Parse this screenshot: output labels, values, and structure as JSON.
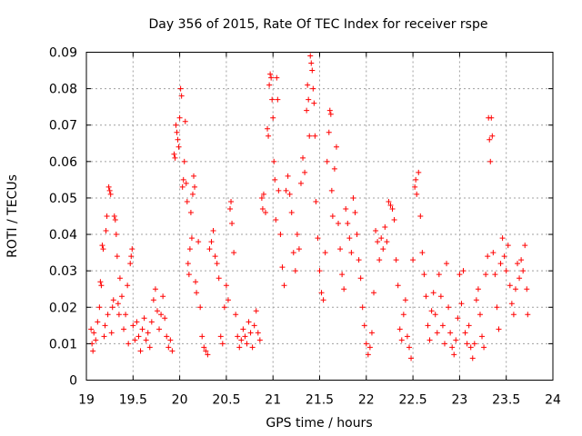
{
  "chart_data": {
    "type": "scatter",
    "title": "Day 356 of 2015, Rate Of TEC Index for receiver rspe",
    "xlabel": "GPS time / hours",
    "ylabel": "ROTI / TECUs",
    "xlim": [
      19,
      24
    ],
    "ylim": [
      0,
      0.09
    ],
    "x_ticks": [
      "19",
      "19.5",
      "20",
      "20.5",
      "21",
      "21.5",
      "22",
      "22.5",
      "23",
      "23.5",
      "24"
    ],
    "y_ticks": [
      "0",
      "0.01",
      "0.02",
      "0.03",
      "0.04",
      "0.05",
      "0.06",
      "0.07",
      "0.08",
      "0.09"
    ],
    "grid": true,
    "marker": "+",
    "color": "#ff0000",
    "series": [
      {
        "name": "ROTI",
        "points": [
          [
            19.05,
            0.014
          ],
          [
            19.06,
            0.01
          ],
          [
            19.07,
            0.008
          ],
          [
            19.08,
            0.013
          ],
          [
            19.1,
            0.011
          ],
          [
            19.12,
            0.016
          ],
          [
            19.14,
            0.02
          ],
          [
            19.15,
            0.027
          ],
          [
            19.16,
            0.026
          ],
          [
            19.17,
            0.037
          ],
          [
            19.18,
            0.036
          ],
          [
            19.19,
            0.012
          ],
          [
            19.2,
            0.015
          ],
          [
            19.21,
            0.041
          ],
          [
            19.22,
            0.045
          ],
          [
            19.23,
            0.018
          ],
          [
            19.24,
            0.053
          ],
          [
            19.25,
            0.052
          ],
          [
            19.26,
            0.051
          ],
          [
            19.27,
            0.013
          ],
          [
            19.28,
            0.02
          ],
          [
            19.29,
            0.022
          ],
          [
            19.3,
            0.045
          ],
          [
            19.31,
            0.044
          ],
          [
            19.32,
            0.04
          ],
          [
            19.33,
            0.034
          ],
          [
            19.34,
            0.021
          ],
          [
            19.35,
            0.018
          ],
          [
            19.36,
            0.028
          ],
          [
            19.38,
            0.023
          ],
          [
            19.4,
            0.014
          ],
          [
            19.42,
            0.018
          ],
          [
            19.44,
            0.026
          ],
          [
            19.45,
            0.01
          ],
          [
            19.47,
            0.032
          ],
          [
            19.48,
            0.034
          ],
          [
            19.49,
            0.036
          ],
          [
            19.5,
            0.015
          ],
          [
            19.52,
            0.011
          ],
          [
            19.54,
            0.016
          ],
          [
            19.56,
            0.012
          ],
          [
            19.58,
            0.008
          ],
          [
            19.6,
            0.014
          ],
          [
            19.62,
            0.017
          ],
          [
            19.64,
            0.011
          ],
          [
            19.66,
            0.013
          ],
          [
            19.68,
            0.009
          ],
          [
            19.7,
            0.016
          ],
          [
            19.72,
            0.022
          ],
          [
            19.74,
            0.025
          ],
          [
            19.76,
            0.019
          ],
          [
            19.78,
            0.014
          ],
          [
            19.8,
            0.018
          ],
          [
            19.82,
            0.023
          ],
          [
            19.84,
            0.017
          ],
          [
            19.86,
            0.012
          ],
          [
            19.88,
            0.009
          ],
          [
            19.9,
            0.011
          ],
          [
            19.92,
            0.008
          ],
          [
            19.94,
            0.062
          ],
          [
            19.95,
            0.061
          ],
          [
            19.96,
            0.07
          ],
          [
            19.97,
            0.068
          ],
          [
            19.98,
            0.066
          ],
          [
            19.99,
            0.064
          ],
          [
            20.0,
            0.072
          ],
          [
            20.01,
            0.08
          ],
          [
            20.02,
            0.078
          ],
          [
            20.03,
            0.053
          ],
          [
            20.04,
            0.055
          ],
          [
            20.05,
            0.06
          ],
          [
            20.06,
            0.071
          ],
          [
            20.07,
            0.054
          ],
          [
            20.08,
            0.049
          ],
          [
            20.09,
            0.032
          ],
          [
            20.1,
            0.029
          ],
          [
            20.11,
            0.036
          ],
          [
            20.12,
            0.046
          ],
          [
            20.13,
            0.039
          ],
          [
            20.14,
            0.051
          ],
          [
            20.15,
            0.056
          ],
          [
            20.16,
            0.053
          ],
          [
            20.17,
            0.027
          ],
          [
            20.18,
            0.024
          ],
          [
            20.2,
            0.038
          ],
          [
            20.22,
            0.02
          ],
          [
            20.24,
            0.012
          ],
          [
            20.26,
            0.009
          ],
          [
            20.28,
            0.008
          ],
          [
            20.3,
            0.007
          ],
          [
            20.32,
            0.036
          ],
          [
            20.34,
            0.038
          ],
          [
            20.36,
            0.041
          ],
          [
            20.38,
            0.034
          ],
          [
            20.4,
            0.032
          ],
          [
            20.42,
            0.028
          ],
          [
            20.44,
            0.012
          ],
          [
            20.46,
            0.01
          ],
          [
            20.48,
            0.02
          ],
          [
            20.5,
            0.026
          ],
          [
            20.52,
            0.022
          ],
          [
            20.54,
            0.047
          ],
          [
            20.55,
            0.049
          ],
          [
            20.56,
            0.043
          ],
          [
            20.58,
            0.035
          ],
          [
            20.6,
            0.018
          ],
          [
            20.62,
            0.012
          ],
          [
            20.64,
            0.009
          ],
          [
            20.66,
            0.011
          ],
          [
            20.68,
            0.014
          ],
          [
            20.7,
            0.012
          ],
          [
            20.72,
            0.01
          ],
          [
            20.74,
            0.016
          ],
          [
            20.76,
            0.013
          ],
          [
            20.78,
            0.009
          ],
          [
            20.8,
            0.015
          ],
          [
            20.82,
            0.019
          ],
          [
            20.84,
            0.013
          ],
          [
            20.86,
            0.011
          ],
          [
            20.88,
            0.05
          ],
          [
            20.89,
            0.047
          ],
          [
            20.9,
            0.051
          ],
          [
            20.92,
            0.046
          ],
          [
            20.94,
            0.069
          ],
          [
            20.95,
            0.067
          ],
          [
            20.96,
            0.081
          ],
          [
            20.97,
            0.084
          ],
          [
            20.98,
            0.083
          ],
          [
            20.99,
            0.077
          ],
          [
            21.0,
            0.072
          ],
          [
            21.01,
            0.06
          ],
          [
            21.02,
            0.055
          ],
          [
            21.03,
            0.044
          ],
          [
            21.04,
            0.083
          ],
          [
            21.05,
            0.077
          ],
          [
            21.06,
            0.052
          ],
          [
            21.08,
            0.04
          ],
          [
            21.1,
            0.031
          ],
          [
            21.12,
            0.026
          ],
          [
            21.14,
            0.052
          ],
          [
            21.16,
            0.056
          ],
          [
            21.18,
            0.051
          ],
          [
            21.2,
            0.046
          ],
          [
            21.22,
            0.035
          ],
          [
            21.24,
            0.03
          ],
          [
            21.26,
            0.04
          ],
          [
            21.28,
            0.036
          ],
          [
            21.3,
            0.054
          ],
          [
            21.32,
            0.061
          ],
          [
            21.34,
            0.057
          ],
          [
            21.36,
            0.074
          ],
          [
            21.37,
            0.081
          ],
          [
            21.38,
            0.077
          ],
          [
            21.39,
            0.067
          ],
          [
            21.4,
            0.089
          ],
          [
            21.41,
            0.087
          ],
          [
            21.42,
            0.085
          ],
          [
            21.43,
            0.08
          ],
          [
            21.44,
            0.076
          ],
          [
            21.45,
            0.067
          ],
          [
            21.46,
            0.049
          ],
          [
            21.48,
            0.039
          ],
          [
            21.5,
            0.03
          ],
          [
            21.52,
            0.024
          ],
          [
            21.54,
            0.022
          ],
          [
            21.56,
            0.035
          ],
          [
            21.58,
            0.06
          ],
          [
            21.6,
            0.068
          ],
          [
            21.61,
            0.074
          ],
          [
            21.62,
            0.073
          ],
          [
            21.63,
            0.052
          ],
          [
            21.64,
            0.045
          ],
          [
            21.66,
            0.058
          ],
          [
            21.68,
            0.064
          ],
          [
            21.7,
            0.043
          ],
          [
            21.72,
            0.036
          ],
          [
            21.74,
            0.029
          ],
          [
            21.76,
            0.025
          ],
          [
            21.78,
            0.047
          ],
          [
            21.8,
            0.043
          ],
          [
            21.82,
            0.039
          ],
          [
            21.84,
            0.035
          ],
          [
            21.86,
            0.05
          ],
          [
            21.88,
            0.046
          ],
          [
            21.9,
            0.04
          ],
          [
            21.92,
            0.033
          ],
          [
            21.94,
            0.028
          ],
          [
            21.96,
            0.02
          ],
          [
            21.98,
            0.015
          ],
          [
            22.0,
            0.01
          ],
          [
            22.02,
            0.007
          ],
          [
            22.04,
            0.009
          ],
          [
            22.06,
            0.013
          ],
          [
            22.08,
            0.024
          ],
          [
            22.1,
            0.041
          ],
          [
            22.12,
            0.038
          ],
          [
            22.14,
            0.033
          ],
          [
            22.16,
            0.039
          ],
          [
            22.18,
            0.036
          ],
          [
            22.2,
            0.042
          ],
          [
            22.22,
            0.038
          ],
          [
            22.24,
            0.049
          ],
          [
            22.26,
            0.048
          ],
          [
            22.28,
            0.047
          ],
          [
            22.3,
            0.044
          ],
          [
            22.32,
            0.033
          ],
          [
            22.34,
            0.026
          ],
          [
            22.36,
            0.014
          ],
          [
            22.38,
            0.011
          ],
          [
            22.4,
            0.018
          ],
          [
            22.42,
            0.022
          ],
          [
            22.44,
            0.012
          ],
          [
            22.46,
            0.009
          ],
          [
            22.48,
            0.006
          ],
          [
            22.5,
            0.033
          ],
          [
            22.52,
            0.053
          ],
          [
            22.53,
            0.055
          ],
          [
            22.54,
            0.051
          ],
          [
            22.56,
            0.057
          ],
          [
            22.58,
            0.045
          ],
          [
            22.6,
            0.035
          ],
          [
            22.62,
            0.029
          ],
          [
            22.64,
            0.023
          ],
          [
            22.66,
            0.015
          ],
          [
            22.68,
            0.011
          ],
          [
            22.7,
            0.019
          ],
          [
            22.72,
            0.024
          ],
          [
            22.74,
            0.018
          ],
          [
            22.76,
            0.013
          ],
          [
            22.78,
            0.029
          ],
          [
            22.8,
            0.023
          ],
          [
            22.82,
            0.015
          ],
          [
            22.84,
            0.01
          ],
          [
            22.86,
            0.032
          ],
          [
            22.88,
            0.02
          ],
          [
            22.9,
            0.013
          ],
          [
            22.92,
            0.009
          ],
          [
            22.94,
            0.007
          ],
          [
            22.96,
            0.011
          ],
          [
            22.98,
            0.017
          ],
          [
            23.0,
            0.029
          ],
          [
            23.02,
            0.021
          ],
          [
            23.04,
            0.03
          ],
          [
            23.06,
            0.013
          ],
          [
            23.08,
            0.01
          ],
          [
            23.1,
            0.015
          ],
          [
            23.12,
            0.009
          ],
          [
            23.14,
            0.006
          ],
          [
            23.16,
            0.01
          ],
          [
            23.18,
            0.022
          ],
          [
            23.2,
            0.025
          ],
          [
            23.22,
            0.018
          ],
          [
            23.24,
            0.012
          ],
          [
            23.26,
            0.009
          ],
          [
            23.28,
            0.029
          ],
          [
            23.3,
            0.034
          ],
          [
            23.31,
            0.072
          ],
          [
            23.32,
            0.066
          ],
          [
            23.33,
            0.06
          ],
          [
            23.34,
            0.072
          ],
          [
            23.35,
            0.067
          ],
          [
            23.36,
            0.035
          ],
          [
            23.38,
            0.029
          ],
          [
            23.4,
            0.02
          ],
          [
            23.42,
            0.014
          ],
          [
            23.44,
            0.032
          ],
          [
            23.46,
            0.039
          ],
          [
            23.48,
            0.034
          ],
          [
            23.5,
            0.03
          ],
          [
            23.52,
            0.037
          ],
          [
            23.54,
            0.026
          ],
          [
            23.56,
            0.021
          ],
          [
            23.58,
            0.018
          ],
          [
            23.6,
            0.025
          ],
          [
            23.62,
            0.032
          ],
          [
            23.64,
            0.028
          ],
          [
            23.66,
            0.033
          ],
          [
            23.68,
            0.03
          ],
          [
            23.7,
            0.037
          ],
          [
            23.72,
            0.025
          ],
          [
            23.73,
            0.018
          ]
        ]
      }
    ]
  }
}
